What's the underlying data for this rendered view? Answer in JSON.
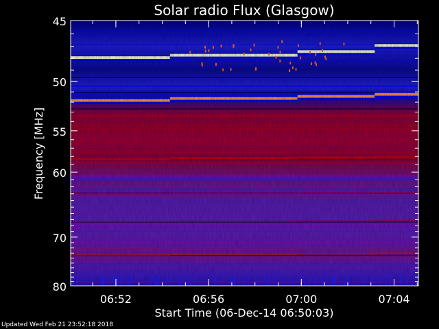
{
  "chart_data": {
    "type": "heatmap",
    "title": "Solar radio Flux (Glasgow)",
    "ylabel": "Frequency [MHz]",
    "xlabel": "Start Time (06-Dec-14 06:50:03)",
    "footer": "Updated Wed Feb 21 23:52:18 2018",
    "y_axis": {
      "range": [
        45,
        80
      ],
      "reversed": true,
      "ticks": [
        45,
        50,
        55,
        60,
        70,
        80
      ],
      "tick_labels": [
        "45",
        "50",
        "55",
        "60",
        "70",
        "80"
      ]
    },
    "x_axis": {
      "range_minutes": [
        "06:50:03",
        "07:05:03"
      ],
      "ticks": [
        "06:52",
        "06:56",
        "07:00",
        "07:04"
      ]
    },
    "segments": [
      {
        "start": "06:50:03",
        "end": "06:54:20"
      },
      {
        "start": "06:54:20",
        "end": "06:59:50"
      },
      {
        "start": "06:59:50",
        "end": "07:03:10"
      },
      {
        "start": "07:03:10",
        "end": "07:05:03"
      }
    ],
    "bright_bands_mhz": [
      {
        "mhz_by_segment": [
          47.9,
          47.7,
          47.4,
          46.9
        ],
        "color": "#ffffcc"
      },
      {
        "mhz_by_segment": [
          51.8,
          51.6,
          51.4,
          51.2
        ],
        "color": "#ff9933"
      }
    ],
    "colors": {
      "low": "#0000ff",
      "mid": "#990099",
      "high": "#cc0000",
      "peak": "#ffff88",
      "background": "#000000",
      "axes": "#ffffff"
    }
  }
}
